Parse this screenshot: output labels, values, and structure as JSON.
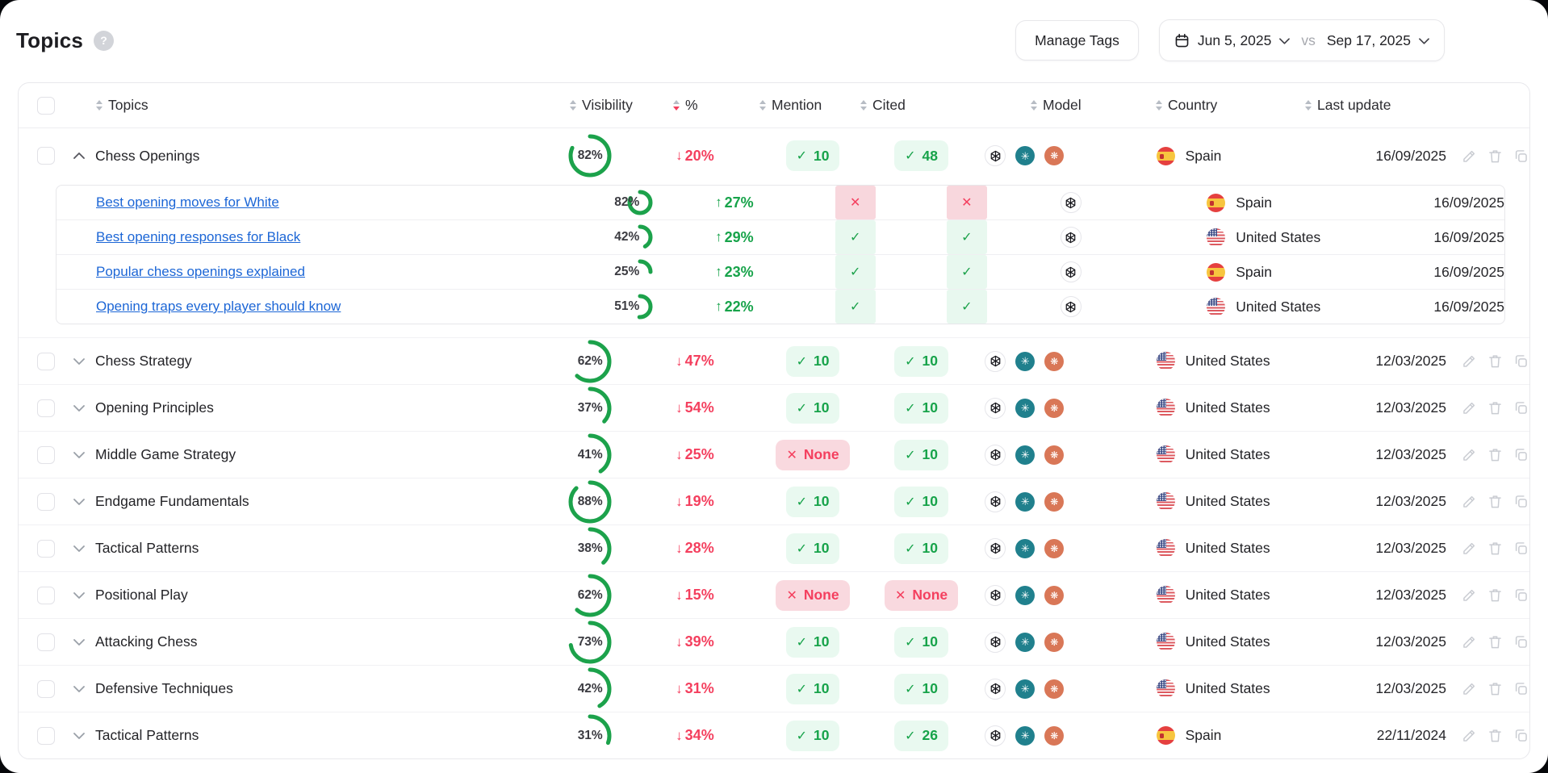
{
  "page": {
    "title": "Topics"
  },
  "toolbar": {
    "manage_tags_label": "Manage Tags",
    "date_range": {
      "start": "Jun 5, 2025",
      "vs_label": "vs",
      "end": "Sep 17, 2025"
    }
  },
  "icons": {
    "help": "?",
    "check": "✓",
    "cross": "✕",
    "up_arrow": "↑",
    "down_arrow": "↓",
    "models": {
      "perplexity": "✳",
      "claude": "❋"
    }
  },
  "colors": {
    "green": "#1ca24b",
    "red": "#f43f5e",
    "link_blue": "#1c66d6",
    "perplexity_teal": "#20808d",
    "claude_orange": "#d97757"
  },
  "table": {
    "columns": [
      {
        "key": "topics",
        "label": "Topics"
      },
      {
        "key": "visibility",
        "label": "Visibility"
      },
      {
        "key": "percent",
        "label": "%",
        "sorted": "desc"
      },
      {
        "key": "mention",
        "label": "Mention"
      },
      {
        "key": "cited",
        "label": "Cited"
      },
      {
        "key": "model",
        "label": "Model"
      },
      {
        "key": "country",
        "label": "Country"
      },
      {
        "key": "last_update",
        "label": "Last update"
      }
    ],
    "actions": [
      "edit",
      "delete",
      "duplicate"
    ],
    "rows": [
      {
        "name": "Chess Openings",
        "expanded": true,
        "visibility": "82%",
        "change": {
          "dir": "down",
          "label": "20%"
        },
        "mention": {
          "state": "yes",
          "label": "10"
        },
        "cited": {
          "state": "yes",
          "label": "48"
        },
        "models": [
          "openai",
          "perplexity",
          "claude"
        ],
        "country": {
          "code": "es",
          "label": "Spain"
        },
        "last_update": "16/09/2025",
        "prompts": [
          {
            "name": "Best opening moves for White",
            "visibility": "82%",
            "change": {
              "dir": "up",
              "label": "27%"
            },
            "mention": {
              "state": "no"
            },
            "cited": {
              "state": "no"
            },
            "models": [
              "openai"
            ],
            "country": {
              "code": "es",
              "label": "Spain"
            },
            "last_update": "16/09/2025"
          },
          {
            "name": "Best opening responses for Black",
            "visibility": "42%",
            "change": {
              "dir": "up",
              "label": "29%"
            },
            "mention": {
              "state": "yes"
            },
            "cited": {
              "state": "yes"
            },
            "models": [
              "openai"
            ],
            "country": {
              "code": "us",
              "label": "United States"
            },
            "last_update": "16/09/2025"
          },
          {
            "name": "Popular chess openings explained",
            "visibility": "25%",
            "change": {
              "dir": "up",
              "label": "23%"
            },
            "mention": {
              "state": "yes"
            },
            "cited": {
              "state": "yes"
            },
            "models": [
              "openai"
            ],
            "country": {
              "code": "es",
              "label": "Spain"
            },
            "last_update": "16/09/2025"
          },
          {
            "name": "Opening traps every player should know",
            "visibility": "51%",
            "change": {
              "dir": "up",
              "label": "22%"
            },
            "mention": {
              "state": "yes"
            },
            "cited": {
              "state": "yes"
            },
            "models": [
              "openai"
            ],
            "country": {
              "code": "us",
              "label": "United States"
            },
            "last_update": "16/09/2025"
          }
        ]
      },
      {
        "name": "Chess Strategy",
        "visibility": "62%",
        "change": {
          "dir": "down",
          "label": "47%"
        },
        "mention": {
          "state": "yes",
          "label": "10"
        },
        "cited": {
          "state": "yes",
          "label": "10"
        },
        "models": [
          "openai",
          "perplexity",
          "claude"
        ],
        "country": {
          "code": "us",
          "label": "United States"
        },
        "last_update": "12/03/2025"
      },
      {
        "name": "Opening Principles",
        "visibility": "37%",
        "change": {
          "dir": "down",
          "label": "54%"
        },
        "mention": {
          "state": "yes",
          "label": "10"
        },
        "cited": {
          "state": "yes",
          "label": "10"
        },
        "models": [
          "openai",
          "perplexity",
          "claude"
        ],
        "country": {
          "code": "us",
          "label": "United States"
        },
        "last_update": "12/03/2025"
      },
      {
        "name": "Middle Game Strategy",
        "visibility": "41%",
        "change": {
          "dir": "down",
          "label": "25%"
        },
        "mention": {
          "state": "no",
          "label": "None"
        },
        "cited": {
          "state": "yes",
          "label": "10"
        },
        "models": [
          "openai",
          "perplexity",
          "claude"
        ],
        "country": {
          "code": "us",
          "label": "United States"
        },
        "last_update": "12/03/2025"
      },
      {
        "name": "Endgame Fundamentals",
        "visibility": "88%",
        "change": {
          "dir": "down",
          "label": "19%"
        },
        "mention": {
          "state": "yes",
          "label": "10"
        },
        "cited": {
          "state": "yes",
          "label": "10"
        },
        "models": [
          "openai",
          "perplexity",
          "claude"
        ],
        "country": {
          "code": "us",
          "label": "United States"
        },
        "last_update": "12/03/2025"
      },
      {
        "name": "Tactical Patterns",
        "visibility": "38%",
        "change": {
          "dir": "down",
          "label": "28%"
        },
        "mention": {
          "state": "yes",
          "label": "10"
        },
        "cited": {
          "state": "yes",
          "label": "10"
        },
        "models": [
          "openai",
          "perplexity",
          "claude"
        ],
        "country": {
          "code": "us",
          "label": "United States"
        },
        "last_update": "12/03/2025"
      },
      {
        "name": "Positional Play",
        "visibility": "62%",
        "change": {
          "dir": "down",
          "label": "15%"
        },
        "mention": {
          "state": "no",
          "label": "None"
        },
        "cited": {
          "state": "no",
          "label": "None"
        },
        "models": [
          "openai",
          "perplexity",
          "claude"
        ],
        "country": {
          "code": "us",
          "label": "United States"
        },
        "last_update": "12/03/2025"
      },
      {
        "name": "Attacking Chess",
        "visibility": "73%",
        "change": {
          "dir": "down",
          "label": "39%"
        },
        "mention": {
          "state": "yes",
          "label": "10"
        },
        "cited": {
          "state": "yes",
          "label": "10"
        },
        "models": [
          "openai",
          "perplexity",
          "claude"
        ],
        "country": {
          "code": "us",
          "label": "United States"
        },
        "last_update": "12/03/2025"
      },
      {
        "name": "Defensive Techniques",
        "visibility": "42%",
        "change": {
          "dir": "down",
          "label": "31%"
        },
        "mention": {
          "state": "yes",
          "label": "10"
        },
        "cited": {
          "state": "yes",
          "label": "10"
        },
        "models": [
          "openai",
          "perplexity",
          "claude"
        ],
        "country": {
          "code": "us",
          "label": "United States"
        },
        "last_update": "12/03/2025"
      },
      {
        "name": "Tactical Patterns",
        "visibility": "31%",
        "change": {
          "dir": "down",
          "label": "34%"
        },
        "mention": {
          "state": "yes",
          "label": "10"
        },
        "cited": {
          "state": "yes",
          "label": "26"
        },
        "models": [
          "openai",
          "perplexity",
          "claude"
        ],
        "country": {
          "code": "es",
          "label": "Spain"
        },
        "last_update": "22/11/2024"
      }
    ]
  }
}
